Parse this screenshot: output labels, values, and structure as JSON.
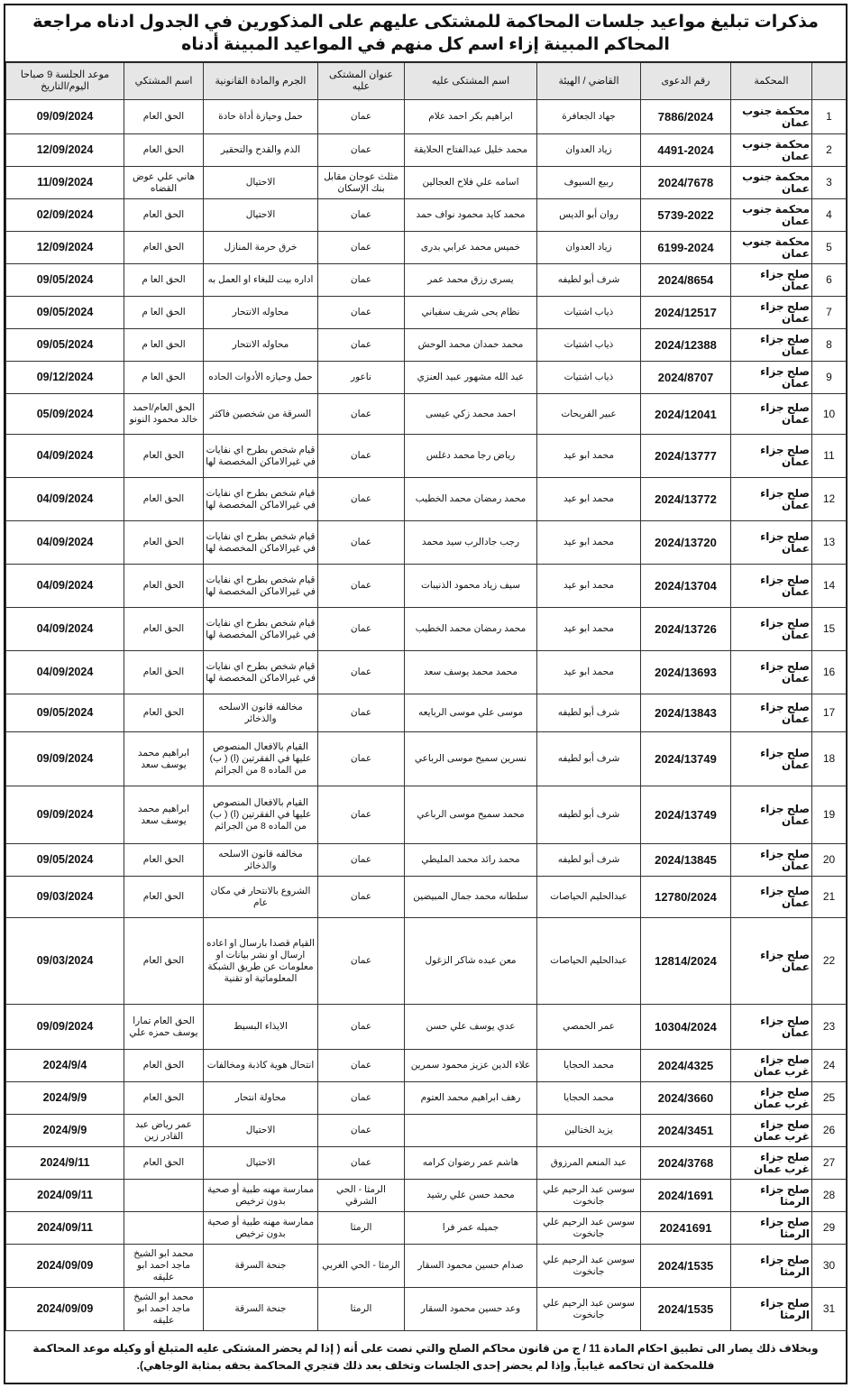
{
  "title": "مذكرات تبليغ مواعيد جلسات المحاكمة للمشتكى عليهم على المذكورين في الجدول ادناه مراجعة المحاكم المبينة إزاء اسم كل منهم في المواعيد المبينة أدناه",
  "headers": {
    "num": "",
    "court": "المحكمة",
    "case": "رقم الدعوى",
    "judge": "القاضي / الهيئة",
    "defendant": "اسم المشتكى عليه",
    "address": "عنوان المشتكى عليه",
    "crime": "الجرم والمادة القانونية",
    "plaintiff": "اسم المشتكي",
    "date": "موعد الجلسة 9 صباحا اليوم/التاريخ"
  },
  "rows": [
    {
      "num": "1",
      "court": "محكمة جنوب عمان",
      "case": "7886/2024",
      "judge": "جهاد الجعافرة",
      "defendant": "ابراهيم بكر احمد علام",
      "address": "عمان",
      "crime": "حمل وحيازة أداة حادة",
      "plaintiff": "الحق العام",
      "date": "09/09/2024"
    },
    {
      "num": "2",
      "court": "محكمة جنوب عمان",
      "case": "4491-2024",
      "judge": "زياد العدوان",
      "defendant": "محمد خليل عبدالفتاح الحلايقة",
      "address": "عمان",
      "crime": "الذم والقدح والتحقير",
      "plaintiff": "الحق العام",
      "date": "12/09/2024"
    },
    {
      "num": "3",
      "court": "محكمة جنوب عمان",
      "case": "2024/7678",
      "judge": "ربيع السيوف",
      "defendant": "اسامه علي فلاح العجالين",
      "address": "مثلث عوجان مقابل بنك الإسكان",
      "crime": "الاحتيال",
      "plaintiff": "هاني علي عوض القضاه",
      "date": "11/09/2024"
    },
    {
      "num": "4",
      "court": "محكمة جنوب عمان",
      "case": "5739-2022",
      "judge": "روان أبو الديس",
      "defendant": "محمد كايد محمود نواف حمد",
      "address": "عمان",
      "crime": "الاحتيال",
      "plaintiff": "الحق العام",
      "date": "02/09/2024"
    },
    {
      "num": "5",
      "court": "محكمة جنوب عمان",
      "case": "6199-2024",
      "judge": "زياد العدوان",
      "defendant": "خميس محمد عرابي بدرى",
      "address": "عمان",
      "crime": "خرق حرمة المنازل",
      "plaintiff": "الحق العام",
      "date": "12/09/2024"
    },
    {
      "num": "6",
      "court": "صلح جزاء عمان",
      "case": "2024/8654",
      "judge": "شرف أبو لطيفه",
      "defendant": "يسرى رزق محمد عمر",
      "address": "عمان",
      "crime": "اداره بيت للبغاء او العمل به",
      "plaintiff": "الحق العا م",
      "date": "09/05/2024"
    },
    {
      "num": "7",
      "court": "صلح جزاء عمان",
      "case": "2024/12517",
      "judge": "ذياب اشتيات",
      "defendant": "نظام يحى شريف سفياني",
      "address": "عمان",
      "crime": "محاوله الانتحار",
      "plaintiff": "الحق العا م",
      "date": "09/05/2024"
    },
    {
      "num": "8",
      "court": "صلح جزاء عمان",
      "case": "2024/12388",
      "judge": "ذياب اشتيات",
      "defendant": "محمد حمدان محمد الوحش",
      "address": "عمان",
      "crime": "محاوله الانتحار",
      "plaintiff": "الحق العا م",
      "date": "09/05/2024"
    },
    {
      "num": "9",
      "court": "صلح جزاء عمان",
      "case": "2024/8707",
      "judge": "ذياب اشتيات",
      "defendant": "عبد الله مشهور عبيد العنزي",
      "address": "ناعور",
      "crime": "حمل وحيازه الأدوات الحاده",
      "plaintiff": "الحق العا م",
      "date": "09/12/2024"
    },
    {
      "num": "10",
      "court": "صلح جزاء عمان",
      "case": "2024/12041",
      "judge": "عبير الفريحات",
      "defendant": "احمد محمد زكي عيسى",
      "address": "عمان",
      "crime": "السرقة من شخصين فاكثر",
      "plaintiff": "الحق العام/احمد خالد محمود النونو",
      "date": "05/09/2024"
    },
    {
      "num": "11",
      "court": "صلح جزاء عمان",
      "case": "2024/13777",
      "judge": "محمد ابو عيد",
      "defendant": "رياض رجا محمد دغلس",
      "address": "عمان",
      "crime": "قيام شخص بطرح اي نفايات في غيرالاماكن المخصصة لها",
      "plaintiff": "الحق العام",
      "date": "04/09/2024"
    },
    {
      "num": "12",
      "court": "صلح جزاء عمان",
      "case": "2024/13772",
      "judge": "محمد ابو عيد",
      "defendant": "محمد رمضان محمد الخطيب",
      "address": "عمان",
      "crime": "قيام شخص بطرح اي نفايات في غيرالاماكن المخصصة لها",
      "plaintiff": "الحق العام",
      "date": "04/09/2024"
    },
    {
      "num": "13",
      "court": "صلح جزاء عمان",
      "case": "2024/13720",
      "judge": "محمد ابو عيد",
      "defendant": "رجب جادالرب سيد محمد",
      "address": "عمان",
      "crime": "قيام شخص بطرح اي نفايات في غيرالاماكن المخصصة لها",
      "plaintiff": "الحق العام",
      "date": "04/09/2024"
    },
    {
      "num": "14",
      "court": "صلح جزاء عمان",
      "case": "2024/13704",
      "judge": "محمد ابو عيد",
      "defendant": "سيف زياد محمود الذنيبات",
      "address": "عمان",
      "crime": "قيام شخص بطرح اي نفايات في غيرالاماكن المخصصة لها",
      "plaintiff": "الحق العام",
      "date": "04/09/2024"
    },
    {
      "num": "15",
      "court": "صلح جزاء عمان",
      "case": "2024/13726",
      "judge": "محمد ابو عيد",
      "defendant": "محمد رمضان محمد الخطيب",
      "address": "عمان",
      "crime": "قيام شخص بطرح اي نفايات في غيرالاماكن المخصصة لها",
      "plaintiff": "الحق العام",
      "date": "04/09/2024"
    },
    {
      "num": "16",
      "court": "صلح جزاء عمان",
      "case": "2024/13693",
      "judge": "محمد ابو عيد",
      "defendant": "محمد محمد يوسف سعد",
      "address": "عمان",
      "crime": "قيام شخص بطرح اي نفايات في غيرالاماكن المخصصة لها",
      "plaintiff": "الحق العام",
      "date": "04/09/2024"
    },
    {
      "num": "17",
      "court": "صلح جزاء عمان",
      "case": "2024/13843",
      "judge": "شرف أبو لطيفه",
      "defendant": "موسى علي موسى الربايعه",
      "address": "عمان",
      "crime": "مخالفه قانون الاسلحه والذخائر",
      "plaintiff": "الحق العام",
      "date": "09/05/2024"
    },
    {
      "num": "18",
      "court": "صلح جزاء عمان",
      "case": "2024/13749",
      "judge": "شرف أبو لطيفه",
      "defendant": "نسرين سميح موسى الرباعي",
      "address": "عمان",
      "crime": "القيام بالافعال المنصوص عليها في الفقرتين (ا) ( ب) من الماده 8 من الجرائم",
      "plaintiff": "ابراهيم محمد يوسف سعد",
      "date": "09/09/2024"
    },
    {
      "num": "19",
      "court": "صلح جزاء عمان",
      "case": "2024/13749",
      "judge": "شرف أبو لطيفه",
      "defendant": "محمد سميح موسى الرباعي",
      "address": "عمان",
      "crime": "القيام بالافعال المنصوص عليها في الفقرتين (ا) ( ب) من الماده 8 من الجرائم",
      "plaintiff": "ابراهيم محمد يوسف سعد",
      "date": "09/09/2024"
    },
    {
      "num": "20",
      "court": "صلح جزاء عمان",
      "case": "2024/13845",
      "judge": "شرف أبو لطيفه",
      "defendant": "محمد رائد محمد المليطي",
      "address": "عمان",
      "crime": "مخالفه قانون الاسلحه والذخائر",
      "plaintiff": "الحق العام",
      "date": "09/05/2024"
    },
    {
      "num": "21",
      "court": "صلح جزاء عمان",
      "case": "12780/2024",
      "judge": "عبدالحليم الحياصات",
      "defendant": "سلطانه محمد جمال المبيضين",
      "address": "عمان",
      "crime": "الشروع بالانتحار في مكان عام",
      "plaintiff": "الحق العام",
      "date": "09/03/2024"
    },
    {
      "num": "22",
      "court": "صلح جزاء عمان",
      "case": "12814/2024",
      "judge": "عبدالحليم الحياصات",
      "defendant": "معن عبده شاكر الزغول",
      "address": "عمان",
      "crime": "القيام قصدا بارسال او اعاده ارسال او نشر بيانات او معلومات عن طريق الشبكة المعلوماتية او تقنية",
      "plaintiff": "الحق العام",
      "date": "09/03/2024"
    },
    {
      "num": "23",
      "court": "صلح جزاء عمان",
      "case": "10304/2024",
      "judge": "عمر الحمصي",
      "defendant": "عدي يوسف علي حسن",
      "address": "عمان",
      "crime": "الايذاء البسيط",
      "plaintiff": "الحق العام تمارا يوسف حمزه علي",
      "date": "09/09/2024"
    },
    {
      "num": "24",
      "court": "صلح جزاء غرب عمان",
      "case": "2024/4325",
      "judge": "محمد الحجايا",
      "defendant": "علاء الدين عزيز محمود سمرين",
      "address": "عمان",
      "crime": "انتحال هوية كاذبة ومخالفات",
      "plaintiff": "الحق العام",
      "date": "2024/9/4"
    },
    {
      "num": "25",
      "court": "صلح جزاء غرب عمان",
      "case": "2024/3660",
      "judge": "محمد الحجايا",
      "defendant": "رهف ابراهيم محمد العتوم",
      "address": "عمان",
      "crime": "محاولة انتحار",
      "plaintiff": "الحق العام",
      "date": "2024/9/9"
    },
    {
      "num": "26",
      "court": "صلح جزاء غرب عمان",
      "case": "2024/3451",
      "judge": "يزيد الختالين",
      "defendant": "",
      "address": "عمان",
      "crime": "الاحتيال",
      "plaintiff": "عمر رياض عبد القادر زين",
      "date": "2024/9/9"
    },
    {
      "num": "27",
      "court": "صلح جزاء غرب عمان",
      "case": "2024/3768",
      "judge": "عبد المنعم المرزوق",
      "defendant": "هاشم عمر رضوان كرامه",
      "address": "عمان",
      "crime": "الاحتيال",
      "plaintiff": "الحق العام",
      "date": "2024/9/11"
    },
    {
      "num": "28",
      "court": "صلح جزاء الرمثا",
      "case": "2024/1691",
      "judge": "سوسن عبد الرحيم علي جانخوت",
      "defendant": "محمد حسن علي رشيد",
      "address": "الرمثا - الحي الشرقي",
      "crime": "ممارسة مهنه طبية أو صحية بدون ترخيص",
      "plaintiff": "",
      "date": "2024/09/11"
    },
    {
      "num": "29",
      "court": "صلح جزاء الرمثا",
      "case": "20241691",
      "judge": "سوسن عبد الرحيم علي جانخوت",
      "defendant": "جميله عمر فرا",
      "address": "الرمثا",
      "crime": "ممارسة مهنه طبية أو صحية بدون ترخيص",
      "plaintiff": "",
      "date": "2024/09/11"
    },
    {
      "num": "30",
      "court": "صلح جزاء الرمثا",
      "case": "2024/1535",
      "judge": "سوسن عبد الرحيم علي جانخوت",
      "defendant": "صدام حسين محمود السقار",
      "address": "الرمثا - الحي الغربي",
      "crime": "جنحة السرقة",
      "plaintiff": "محمد ابو الشيخ ماجد احمد ابو عليقه",
      "date": "2024/09/09"
    },
    {
      "num": "31",
      "court": "صلح جزاء الرمثا",
      "case": "2024/1535",
      "judge": "سوسن عبد الرحيم علي جانخوت",
      "defendant": "وعد حسين محمود السقار",
      "address": "الرمثا",
      "crime": "جنحة السرقة",
      "plaintiff": "محمد ابو الشيخ ماجد احمد ابو عليقه",
      "date": "2024/09/09"
    }
  ],
  "footer": "وبخلاف ذلك يصار الى تطبيق احكام المادة 11 / ج من قانون محاكم الصلح والتي نصت على أنه ( إذا لم يحضر المشتكى عليه المتبلغ أو وكيله موعد المحاكمة فللمحكمة ان تحاكمه غيابياً, وإذا لم يحضر إحدى الجلسات وتخلف بعد ذلك فتجري المحاكمة بحقه بمثابة الوجاهي)."
}
